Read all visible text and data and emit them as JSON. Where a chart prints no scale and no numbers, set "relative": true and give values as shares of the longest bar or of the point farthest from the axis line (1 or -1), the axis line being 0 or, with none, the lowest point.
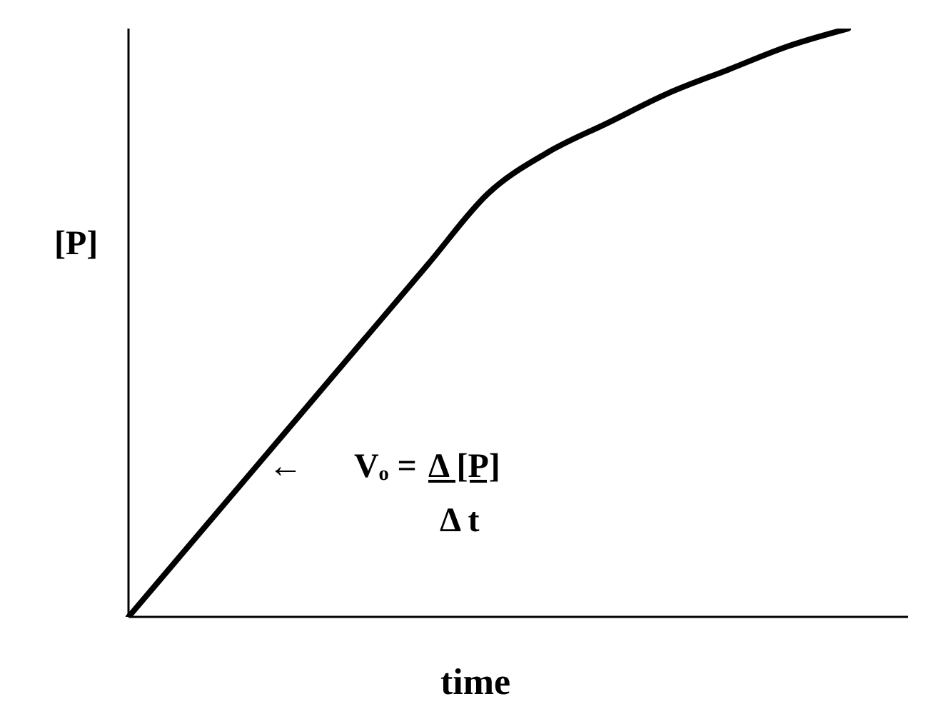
{
  "chart_data": {
    "type": "line",
    "relative": true,
    "xlabel": "time",
    "ylabel": "[P]",
    "marker": "none",
    "line_style": "solid",
    "categories": [
      null,
      null,
      null,
      null,
      null,
      null,
      null,
      null,
      null,
      null,
      null,
      null,
      null,
      null
    ],
    "series": [
      {
        "color": "#000000",
        "values": [
          0,
          0.12,
          0.24,
          0.36,
          0.48,
          0.6,
          0.72,
          0.79,
          0.84,
          0.89,
          0.93,
          0.97,
          1,
          null
        ]
      }
    ],
    "annotations": [
      "←",
      "Vₒ =",
      "Δ [P]",
      "Δ t"
    ]
  }
}
